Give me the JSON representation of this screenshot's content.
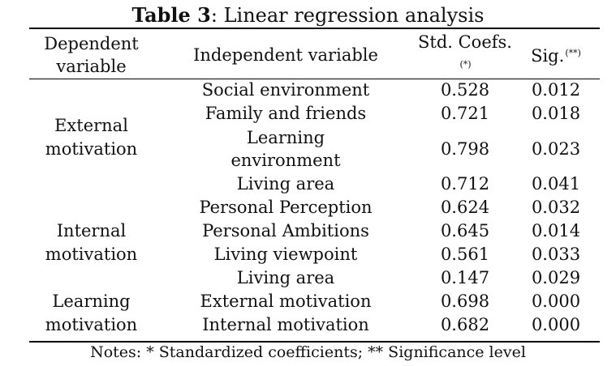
{
  "table": {
    "label": "Table 3",
    "caption": ": Linear regression analysis",
    "headers": {
      "dependent": "Dependent variable",
      "independent": "Independent variable",
      "std_coefs": "Std. Coefs.",
      "std_coefs_mark": "(*)",
      "sig": "Sig.",
      "sig_mark": "(**)"
    },
    "groups": [
      {
        "dependent": "External motivation",
        "rows": [
          {
            "independent": "Social environment",
            "coef": "0.528",
            "sig": "0.012"
          },
          {
            "independent": "Family and friends",
            "coef": "0.721",
            "sig": "0.018"
          },
          {
            "independent": "Learning environment",
            "coef": "0.798",
            "sig": "0.023"
          },
          {
            "independent": "Living area",
            "coef": "0.712",
            "sig": "0.041"
          }
        ]
      },
      {
        "dependent": "Internal motivation",
        "rows": [
          {
            "independent": "Personal Perception",
            "coef": "0.624",
            "sig": "0.032"
          },
          {
            "independent": "Personal Ambitions",
            "coef": "0.645",
            "sig": "0.014"
          },
          {
            "independent": "Living viewpoint",
            "coef": "0.561",
            "sig": "0.033"
          },
          {
            "independent": "Living area",
            "coef": "0.147",
            "sig": "0.029"
          }
        ]
      },
      {
        "dependent": "Learning motivation",
        "rows": [
          {
            "independent": "External motivation",
            "coef": "0.698",
            "sig": "0.000"
          },
          {
            "independent": "Internal motivation",
            "coef": "0.682",
            "sig": "0.000"
          }
        ]
      }
    ],
    "notes": "Notes: * Standardized coefficients; ** Significance level"
  }
}
